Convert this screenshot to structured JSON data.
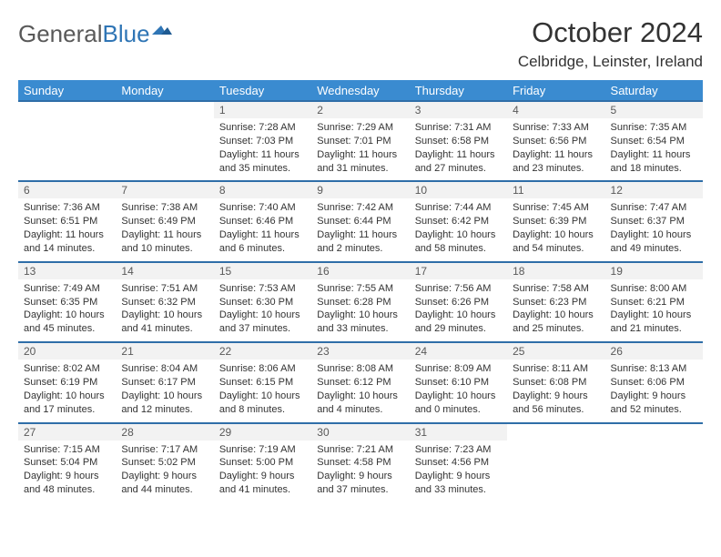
{
  "logo": {
    "part1": "General",
    "part2": "Blue"
  },
  "title": "October 2024",
  "location": "Celbridge, Leinster, Ireland",
  "colors": {
    "header_bg": "#3a8bd0",
    "header_text": "#ffffff",
    "daynum_bg": "#f2f2f2",
    "daynum_text": "#595959",
    "row_border": "#2f6ea8",
    "body_text": "#333333",
    "logo_gray": "#595959",
    "logo_blue": "#2f75b5",
    "page_bg": "#ffffff"
  },
  "typography": {
    "title_fontsize": 31,
    "location_fontsize": 17,
    "dayheader_fontsize": 13,
    "daynum_fontsize": 12,
    "cell_fontsize": 11,
    "logo_fontsize": 26
  },
  "day_headers": [
    "Sunday",
    "Monday",
    "Tuesday",
    "Wednesday",
    "Thursday",
    "Friday",
    "Saturday"
  ],
  "weeks": [
    {
      "nums": [
        "",
        "",
        "1",
        "2",
        "3",
        "4",
        "5"
      ],
      "cells": [
        "",
        "",
        "Sunrise: 7:28 AM\nSunset: 7:03 PM\nDaylight: 11 hours and 35 minutes.",
        "Sunrise: 7:29 AM\nSunset: 7:01 PM\nDaylight: 11 hours and 31 minutes.",
        "Sunrise: 7:31 AM\nSunset: 6:58 PM\nDaylight: 11 hours and 27 minutes.",
        "Sunrise: 7:33 AM\nSunset: 6:56 PM\nDaylight: 11 hours and 23 minutes.",
        "Sunrise: 7:35 AM\nSunset: 6:54 PM\nDaylight: 11 hours and 18 minutes."
      ]
    },
    {
      "nums": [
        "6",
        "7",
        "8",
        "9",
        "10",
        "11",
        "12"
      ],
      "cells": [
        "Sunrise: 7:36 AM\nSunset: 6:51 PM\nDaylight: 11 hours and 14 minutes.",
        "Sunrise: 7:38 AM\nSunset: 6:49 PM\nDaylight: 11 hours and 10 minutes.",
        "Sunrise: 7:40 AM\nSunset: 6:46 PM\nDaylight: 11 hours and 6 minutes.",
        "Sunrise: 7:42 AM\nSunset: 6:44 PM\nDaylight: 11 hours and 2 minutes.",
        "Sunrise: 7:44 AM\nSunset: 6:42 PM\nDaylight: 10 hours and 58 minutes.",
        "Sunrise: 7:45 AM\nSunset: 6:39 PM\nDaylight: 10 hours and 54 minutes.",
        "Sunrise: 7:47 AM\nSunset: 6:37 PM\nDaylight: 10 hours and 49 minutes."
      ]
    },
    {
      "nums": [
        "13",
        "14",
        "15",
        "16",
        "17",
        "18",
        "19"
      ],
      "cells": [
        "Sunrise: 7:49 AM\nSunset: 6:35 PM\nDaylight: 10 hours and 45 minutes.",
        "Sunrise: 7:51 AM\nSunset: 6:32 PM\nDaylight: 10 hours and 41 minutes.",
        "Sunrise: 7:53 AM\nSunset: 6:30 PM\nDaylight: 10 hours and 37 minutes.",
        "Sunrise: 7:55 AM\nSunset: 6:28 PM\nDaylight: 10 hours and 33 minutes.",
        "Sunrise: 7:56 AM\nSunset: 6:26 PM\nDaylight: 10 hours and 29 minutes.",
        "Sunrise: 7:58 AM\nSunset: 6:23 PM\nDaylight: 10 hours and 25 minutes.",
        "Sunrise: 8:00 AM\nSunset: 6:21 PM\nDaylight: 10 hours and 21 minutes."
      ]
    },
    {
      "nums": [
        "20",
        "21",
        "22",
        "23",
        "24",
        "25",
        "26"
      ],
      "cells": [
        "Sunrise: 8:02 AM\nSunset: 6:19 PM\nDaylight: 10 hours and 17 minutes.",
        "Sunrise: 8:04 AM\nSunset: 6:17 PM\nDaylight: 10 hours and 12 minutes.",
        "Sunrise: 8:06 AM\nSunset: 6:15 PM\nDaylight: 10 hours and 8 minutes.",
        "Sunrise: 8:08 AM\nSunset: 6:12 PM\nDaylight: 10 hours and 4 minutes.",
        "Sunrise: 8:09 AM\nSunset: 6:10 PM\nDaylight: 10 hours and 0 minutes.",
        "Sunrise: 8:11 AM\nSunset: 6:08 PM\nDaylight: 9 hours and 56 minutes.",
        "Sunrise: 8:13 AM\nSunset: 6:06 PM\nDaylight: 9 hours and 52 minutes."
      ]
    },
    {
      "nums": [
        "27",
        "28",
        "29",
        "30",
        "31",
        "",
        ""
      ],
      "cells": [
        "Sunrise: 7:15 AM\nSunset: 5:04 PM\nDaylight: 9 hours and 48 minutes.",
        "Sunrise: 7:17 AM\nSunset: 5:02 PM\nDaylight: 9 hours and 44 minutes.",
        "Sunrise: 7:19 AM\nSunset: 5:00 PM\nDaylight: 9 hours and 41 minutes.",
        "Sunrise: 7:21 AM\nSunset: 4:58 PM\nDaylight: 9 hours and 37 minutes.",
        "Sunrise: 7:23 AM\nSunset: 4:56 PM\nDaylight: 9 hours and 33 minutes.",
        "",
        ""
      ]
    }
  ]
}
